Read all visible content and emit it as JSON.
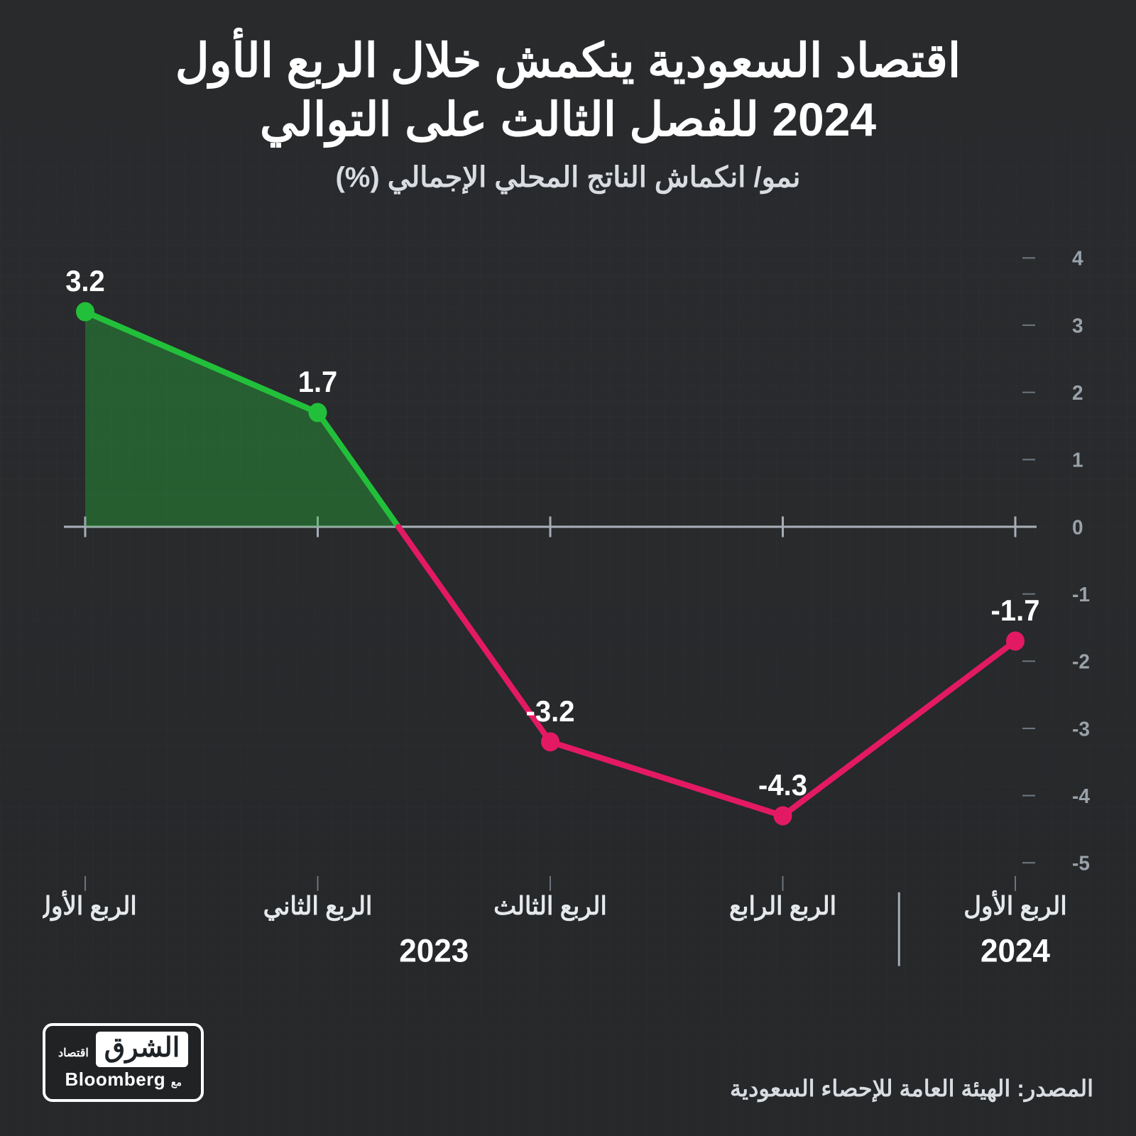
{
  "title_line1": "اقتصاد السعودية ينكمش خلال الربع الأول",
  "title_line2": "2024 للفصل الثالث على التوالي",
  "title_fontsize": 66,
  "subtitle": "نمو/ انكماش الناتج المحلي الإجمالي (%)",
  "subtitle_fontsize": 40,
  "chart": {
    "type": "line-area",
    "categories": [
      "الربع الأول",
      "الربع الثاني",
      "الربع الثالث",
      "الربع الرابع",
      "الربع الأول"
    ],
    "values": [
      3.2,
      1.7,
      -3.2,
      -4.3,
      -1.7
    ],
    "value_labels": [
      "3.2",
      "1.7",
      "3.2-",
      "4.3-",
      "1.7-"
    ],
    "year_groups": [
      {
        "label": "2023",
        "span": [
          0,
          3
        ]
      },
      {
        "label": "2024",
        "span": [
          4,
          4
        ]
      }
    ],
    "ymin": -5,
    "ymax": 4,
    "ytick_step": 1,
    "line_width": 8,
    "marker_radius": 13,
    "pos_color": "#22c03a",
    "neg_color": "#e31a63",
    "pos_fill": "rgba(34,192,58,0.35)",
    "neg_fill": "rgba(227,26,99,0.0)",
    "axis_color": "#a6adb5",
    "grid_color": "#6d757e",
    "label_color": "#9aa2aa",
    "background": "transparent",
    "marker_inner": "#2d3238"
  },
  "source": "المصدر: الهيئة العامة للإحصاء السعودية",
  "logo": {
    "brand_ar": "الشرق",
    "brand_sub": "اقتصاد",
    "partner": "Bloomberg",
    "partner_prefix": "مع"
  }
}
